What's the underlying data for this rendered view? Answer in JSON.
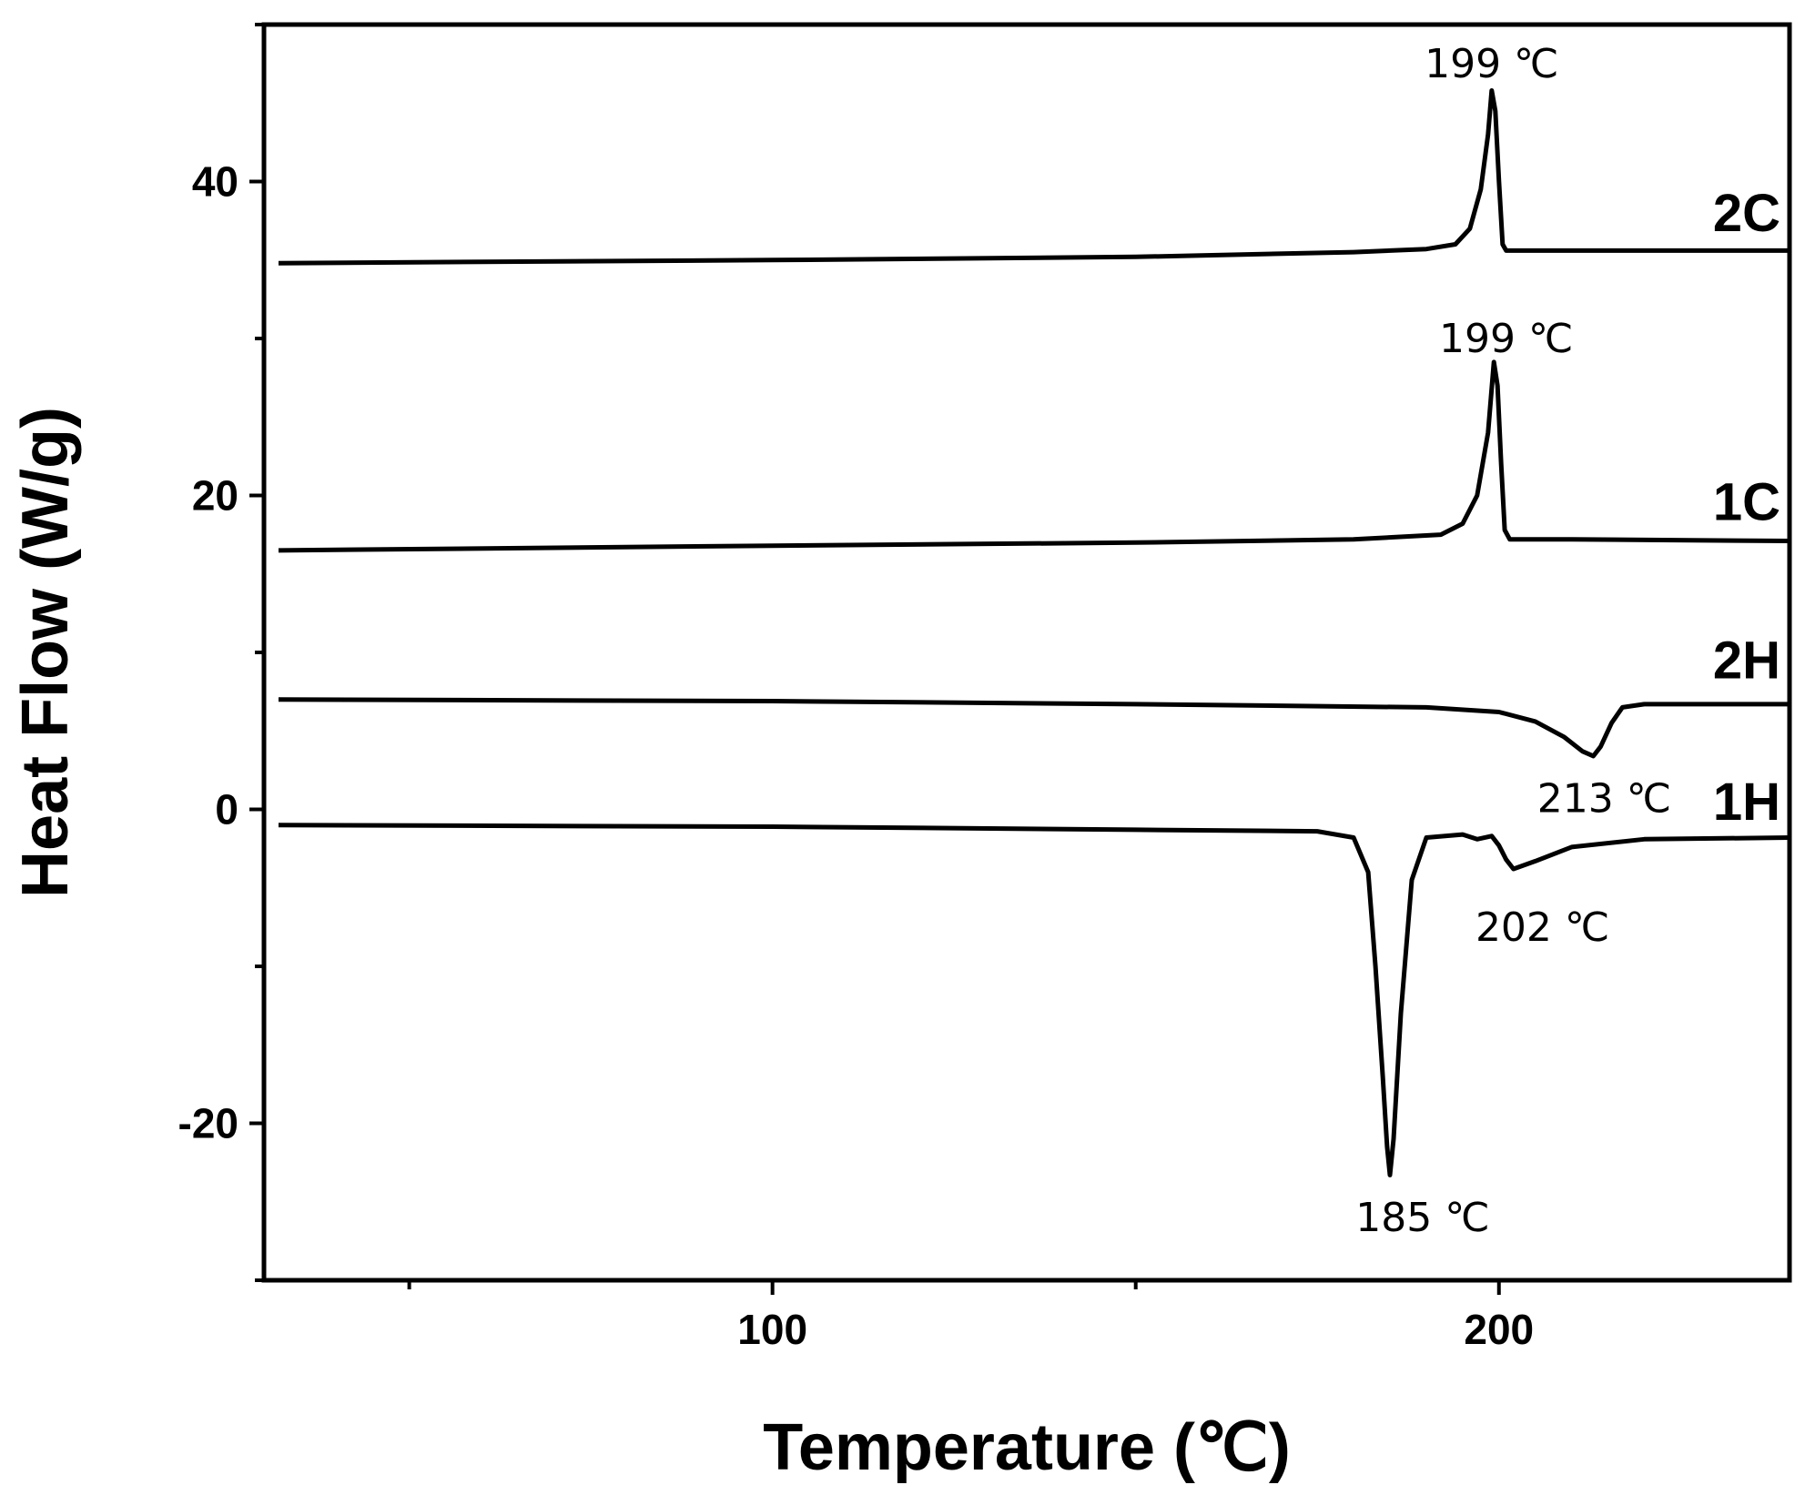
{
  "chart_data": {
    "type": "line",
    "title": "",
    "xlabel": "Temperature (℃)",
    "ylabel": "Heat Flow (W/g)",
    "xlim": [
      30,
      240
    ],
    "ylim": [
      -30,
      50
    ],
    "x_ticks_major": [
      100,
      200
    ],
    "x_ticks_minor": [
      50,
      150
    ],
    "y_ticks_major": [
      -20,
      0,
      20,
      40
    ],
    "y_ticks_minor": [
      -30,
      -10,
      10,
      30,
      50
    ],
    "grid": false,
    "legend": "none",
    "series": [
      {
        "name": "2C",
        "points": [
          [
            32,
            34.8
          ],
          [
            100,
            35.0
          ],
          [
            150,
            35.2
          ],
          [
            180,
            35.5
          ],
          [
            190,
            35.7
          ],
          [
            194,
            36.0
          ],
          [
            196,
            37.0
          ],
          [
            197.5,
            39.5
          ],
          [
            198.5,
            43.0
          ],
          [
            199,
            45.8
          ],
          [
            199.5,
            44.5
          ],
          [
            200,
            40.0
          ],
          [
            200.5,
            36.0
          ],
          [
            201,
            35.6
          ],
          [
            210,
            35.6
          ],
          [
            240,
            35.6
          ]
        ]
      },
      {
        "name": "1C",
        "points": [
          [
            32,
            16.5
          ],
          [
            100,
            16.8
          ],
          [
            150,
            17.0
          ],
          [
            180,
            17.2
          ],
          [
            192,
            17.5
          ],
          [
            195,
            18.2
          ],
          [
            197,
            20.0
          ],
          [
            198.5,
            24.0
          ],
          [
            199.3,
            28.5
          ],
          [
            199.8,
            27.0
          ],
          [
            200.3,
            22.0
          ],
          [
            200.8,
            17.8
          ],
          [
            201.5,
            17.2
          ],
          [
            210,
            17.2
          ],
          [
            240,
            17.1
          ]
        ]
      },
      {
        "name": "2H",
        "points": [
          [
            32,
            7.0
          ],
          [
            100,
            6.9
          ],
          [
            150,
            6.7
          ],
          [
            190,
            6.5
          ],
          [
            200,
            6.2
          ],
          [
            205,
            5.6
          ],
          [
            209,
            4.6
          ],
          [
            211.5,
            3.7
          ],
          [
            213,
            3.4
          ],
          [
            214,
            4.0
          ],
          [
            215.5,
            5.5
          ],
          [
            217,
            6.5
          ],
          [
            220,
            6.7
          ],
          [
            240,
            6.7
          ]
        ]
      },
      {
        "name": "1H",
        "points": [
          [
            32,
            -1.0
          ],
          [
            100,
            -1.1
          ],
          [
            150,
            -1.3
          ],
          [
            175,
            -1.4
          ],
          [
            180,
            -1.8
          ],
          [
            182,
            -4.0
          ],
          [
            183,
            -10.0
          ],
          [
            184,
            -17.0
          ],
          [
            184.6,
            -21.5
          ],
          [
            185,
            -23.3
          ],
          [
            185.5,
            -21.0
          ],
          [
            186.5,
            -13.0
          ],
          [
            188,
            -4.5
          ],
          [
            190,
            -1.8
          ],
          [
            195,
            -1.6
          ],
          [
            197,
            -1.9
          ],
          [
            199,
            -1.7
          ],
          [
            200,
            -2.3
          ],
          [
            201,
            -3.2
          ],
          [
            202,
            -3.8
          ],
          [
            205,
            -3.3
          ],
          [
            210,
            -2.4
          ],
          [
            220,
            -1.9
          ],
          [
            240,
            -1.8
          ]
        ]
      }
    ],
    "series_labels": [
      {
        "text": "2C",
        "x": 240,
        "y": 38.0
      },
      {
        "text": "1C",
        "x": 240,
        "y": 19.6
      },
      {
        "text": "2H",
        "x": 240,
        "y": 9.5
      },
      {
        "text": "1H",
        "x": 240,
        "y": 0.5
      }
    ],
    "annotations": [
      {
        "text": "199 ℃",
        "x": 199,
        "y": 47.5
      },
      {
        "text": "199 ℃",
        "x": 201,
        "y": 30.0
      },
      {
        "text": "213 ℃",
        "x": 214.5,
        "y": 0.7
      },
      {
        "text": "202 ℃",
        "x": 206,
        "y": -7.5
      },
      {
        "text": "185 ℃",
        "x": 189.5,
        "y": -26.0
      }
    ]
  }
}
